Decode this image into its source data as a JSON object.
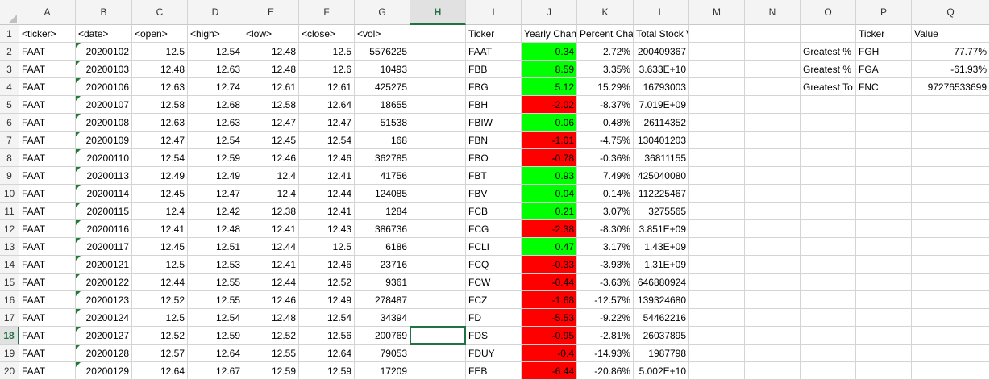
{
  "columns": [
    "A",
    "B",
    "C",
    "D",
    "E",
    "F",
    "G",
    "H",
    "I",
    "J",
    "K",
    "L",
    "M",
    "N",
    "O",
    "P",
    "Q"
  ],
  "selected_column": "H",
  "selected_row": 18,
  "rows": [
    {
      "n": "1",
      "A": "<ticker>",
      "B": "<date>",
      "C": "<open>",
      "D": "<high>",
      "E": "<low>",
      "F": "<close>",
      "G": "<vol>",
      "I": "Ticker",
      "J": "Yearly Chan",
      "K": "Percent Cha",
      "L": "Total Stock Volume",
      "P": "Ticker",
      "Q": "Value"
    },
    {
      "n": "2",
      "A": "FAAT",
      "B": "20200102",
      "C": "12.5",
      "D": "12.54",
      "E": "12.48",
      "F": "12.5",
      "G": "5576225",
      "I": "FAAT",
      "J": "0.34",
      "K": "2.72%",
      "L": "200409367",
      "O": "Greatest %",
      "P": "FGH",
      "Q": "77.77%"
    },
    {
      "n": "3",
      "A": "FAAT",
      "B": "20200103",
      "C": "12.48",
      "D": "12.63",
      "E": "12.48",
      "F": "12.6",
      "G": "10493",
      "I": "FBB",
      "J": "8.59",
      "K": "3.35%",
      "L": "3.633E+10",
      "O": "Greatest %",
      "P": "FGA",
      "Q": "-61.93%"
    },
    {
      "n": "4",
      "A": "FAAT",
      "B": "20200106",
      "C": "12.63",
      "D": "12.74",
      "E": "12.61",
      "F": "12.61",
      "G": "425275",
      "I": "FBG",
      "J": "5.12",
      "K": "15.29%",
      "L": "16793003",
      "O": "Greatest To",
      "P": "FNC",
      "Q": "97276533699"
    },
    {
      "n": "5",
      "A": "FAAT",
      "B": "20200107",
      "C": "12.58",
      "D": "12.68",
      "E": "12.58",
      "F": "12.64",
      "G": "18655",
      "I": "FBH",
      "J": "-2.02",
      "K": "-8.37%",
      "L": "7.019E+09"
    },
    {
      "n": "6",
      "A": "FAAT",
      "B": "20200108",
      "C": "12.63",
      "D": "12.63",
      "E": "12.47",
      "F": "12.47",
      "G": "51538",
      "I": "FBIW",
      "J": "0.06",
      "K": "0.48%",
      "L": "26114352"
    },
    {
      "n": "7",
      "A": "FAAT",
      "B": "20200109",
      "C": "12.47",
      "D": "12.54",
      "E": "12.45",
      "F": "12.54",
      "G": "168",
      "I": "FBN",
      "J": "-1.01",
      "K": "-4.75%",
      "L": "130401203"
    },
    {
      "n": "8",
      "A": "FAAT",
      "B": "20200110",
      "C": "12.54",
      "D": "12.59",
      "E": "12.46",
      "F": "12.46",
      "G": "362785",
      "I": "FBO",
      "J": "-0.78",
      "K": "-0.36%",
      "L": "36811155"
    },
    {
      "n": "9",
      "A": "FAAT",
      "B": "20200113",
      "C": "12.49",
      "D": "12.49",
      "E": "12.4",
      "F": "12.41",
      "G": "41756",
      "I": "FBT",
      "J": "0.93",
      "K": "7.49%",
      "L": "425040080"
    },
    {
      "n": "10",
      "A": "FAAT",
      "B": "20200114",
      "C": "12.45",
      "D": "12.47",
      "E": "12.4",
      "F": "12.44",
      "G": "124085",
      "I": "FBV",
      "J": "0.04",
      "K": "0.14%",
      "L": "112225467"
    },
    {
      "n": "11",
      "A": "FAAT",
      "B": "20200115",
      "C": "12.4",
      "D": "12.42",
      "E": "12.38",
      "F": "12.41",
      "G": "1284",
      "I": "FCB",
      "J": "0.21",
      "K": "3.07%",
      "L": "3275565"
    },
    {
      "n": "12",
      "A": "FAAT",
      "B": "20200116",
      "C": "12.41",
      "D": "12.48",
      "E": "12.41",
      "F": "12.43",
      "G": "386736",
      "I": "FCG",
      "J": "-2.38",
      "K": "-8.30%",
      "L": "3.851E+09"
    },
    {
      "n": "13",
      "A": "FAAT",
      "B": "20200117",
      "C": "12.45",
      "D": "12.51",
      "E": "12.44",
      "F": "12.5",
      "G": "6186",
      "I": "FCLI",
      "J": "0.47",
      "K": "3.17%",
      "L": "1.43E+09"
    },
    {
      "n": "14",
      "A": "FAAT",
      "B": "20200121",
      "C": "12.5",
      "D": "12.53",
      "E": "12.41",
      "F": "12.46",
      "G": "23716",
      "I": "FCQ",
      "J": "-0.33",
      "K": "-3.93%",
      "L": "1.31E+09"
    },
    {
      "n": "15",
      "A": "FAAT",
      "B": "20200122",
      "C": "12.44",
      "D": "12.55",
      "E": "12.44",
      "F": "12.52",
      "G": "9361",
      "I": "FCW",
      "J": "-0.44",
      "K": "-3.63%",
      "L": "646880924"
    },
    {
      "n": "16",
      "A": "FAAT",
      "B": "20200123",
      "C": "12.52",
      "D": "12.55",
      "E": "12.46",
      "F": "12.49",
      "G": "278487",
      "I": "FCZ",
      "J": "-1.68",
      "K": "-12.57%",
      "L": "139324680"
    },
    {
      "n": "17",
      "A": "FAAT",
      "B": "20200124",
      "C": "12.5",
      "D": "12.54",
      "E": "12.48",
      "F": "12.54",
      "G": "34394",
      "I": "FD",
      "J": "-5.53",
      "K": "-9.22%",
      "L": "54462216"
    },
    {
      "n": "18",
      "A": "FAAT",
      "B": "20200127",
      "C": "12.52",
      "D": "12.59",
      "E": "12.52",
      "F": "12.56",
      "G": "200769",
      "I": "FDS",
      "J": "-0.95",
      "K": "-2.81%",
      "L": "26037895"
    },
    {
      "n": "19",
      "A": "FAAT",
      "B": "20200128",
      "C": "12.57",
      "D": "12.64",
      "E": "12.55",
      "F": "12.64",
      "G": "79053",
      "I": "FDUY",
      "J": "-0.4",
      "K": "-14.93%",
      "L": "1987798"
    },
    {
      "n": "20",
      "A": "FAAT",
      "B": "20200129",
      "C": "12.64",
      "D": "12.67",
      "E": "12.59",
      "F": "12.59",
      "G": "17209",
      "I": "FEB",
      "J": "-6.44",
      "K": "-20.86%",
      "L": "5.002E+10"
    }
  ],
  "colors": {
    "positive_fill": "#00ff00",
    "negative_fill": "#ff0000",
    "selection": "#217346"
  }
}
